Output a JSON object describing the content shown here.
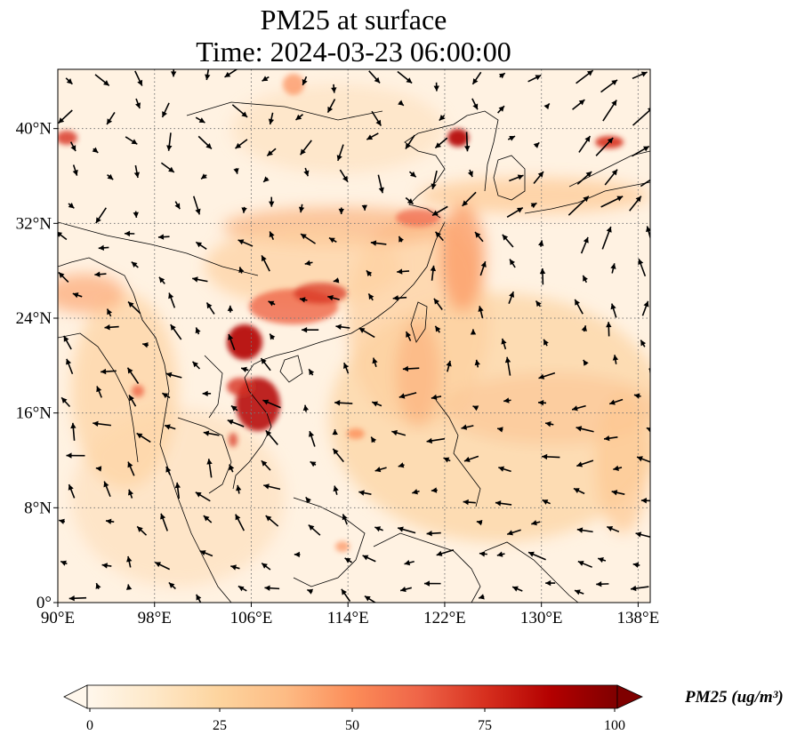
{
  "title": {
    "line1": "PM25 at surface",
    "line2": "Time: 2024-03-23 06:00:00"
  },
  "map": {
    "lon_range": [
      90,
      139
    ],
    "lat_range": [
      0,
      45
    ],
    "lon_ticks": [
      90,
      98,
      106,
      114,
      122,
      130,
      138
    ],
    "lat_ticks": [
      0,
      8,
      16,
      24,
      32,
      40
    ],
    "lon_tick_labels": [
      "90°E",
      "98°E",
      "106°E",
      "114°E",
      "122°E",
      "130°E",
      "138°E"
    ],
    "lat_tick_labels": [
      "0°",
      "8°N",
      "16°N",
      "24°N",
      "32°N",
      "40°N"
    ],
    "gridlines": "dotted",
    "field": "PM25",
    "wind_vectors": true
  },
  "colorbar": {
    "label": "PM25 (ug/m³)",
    "ticks": [
      0,
      25,
      50,
      75,
      100
    ],
    "tick_labels": [
      "0",
      "25",
      "50",
      "75",
      "100"
    ],
    "colormap": "OrRd",
    "colors": [
      "#fff7ec",
      "#fee8c8",
      "#fdd49e",
      "#fdbb84",
      "#fc8d59",
      "#ef6548",
      "#d7301f",
      "#b30000",
      "#7f0000"
    ],
    "extend": "both"
  }
}
